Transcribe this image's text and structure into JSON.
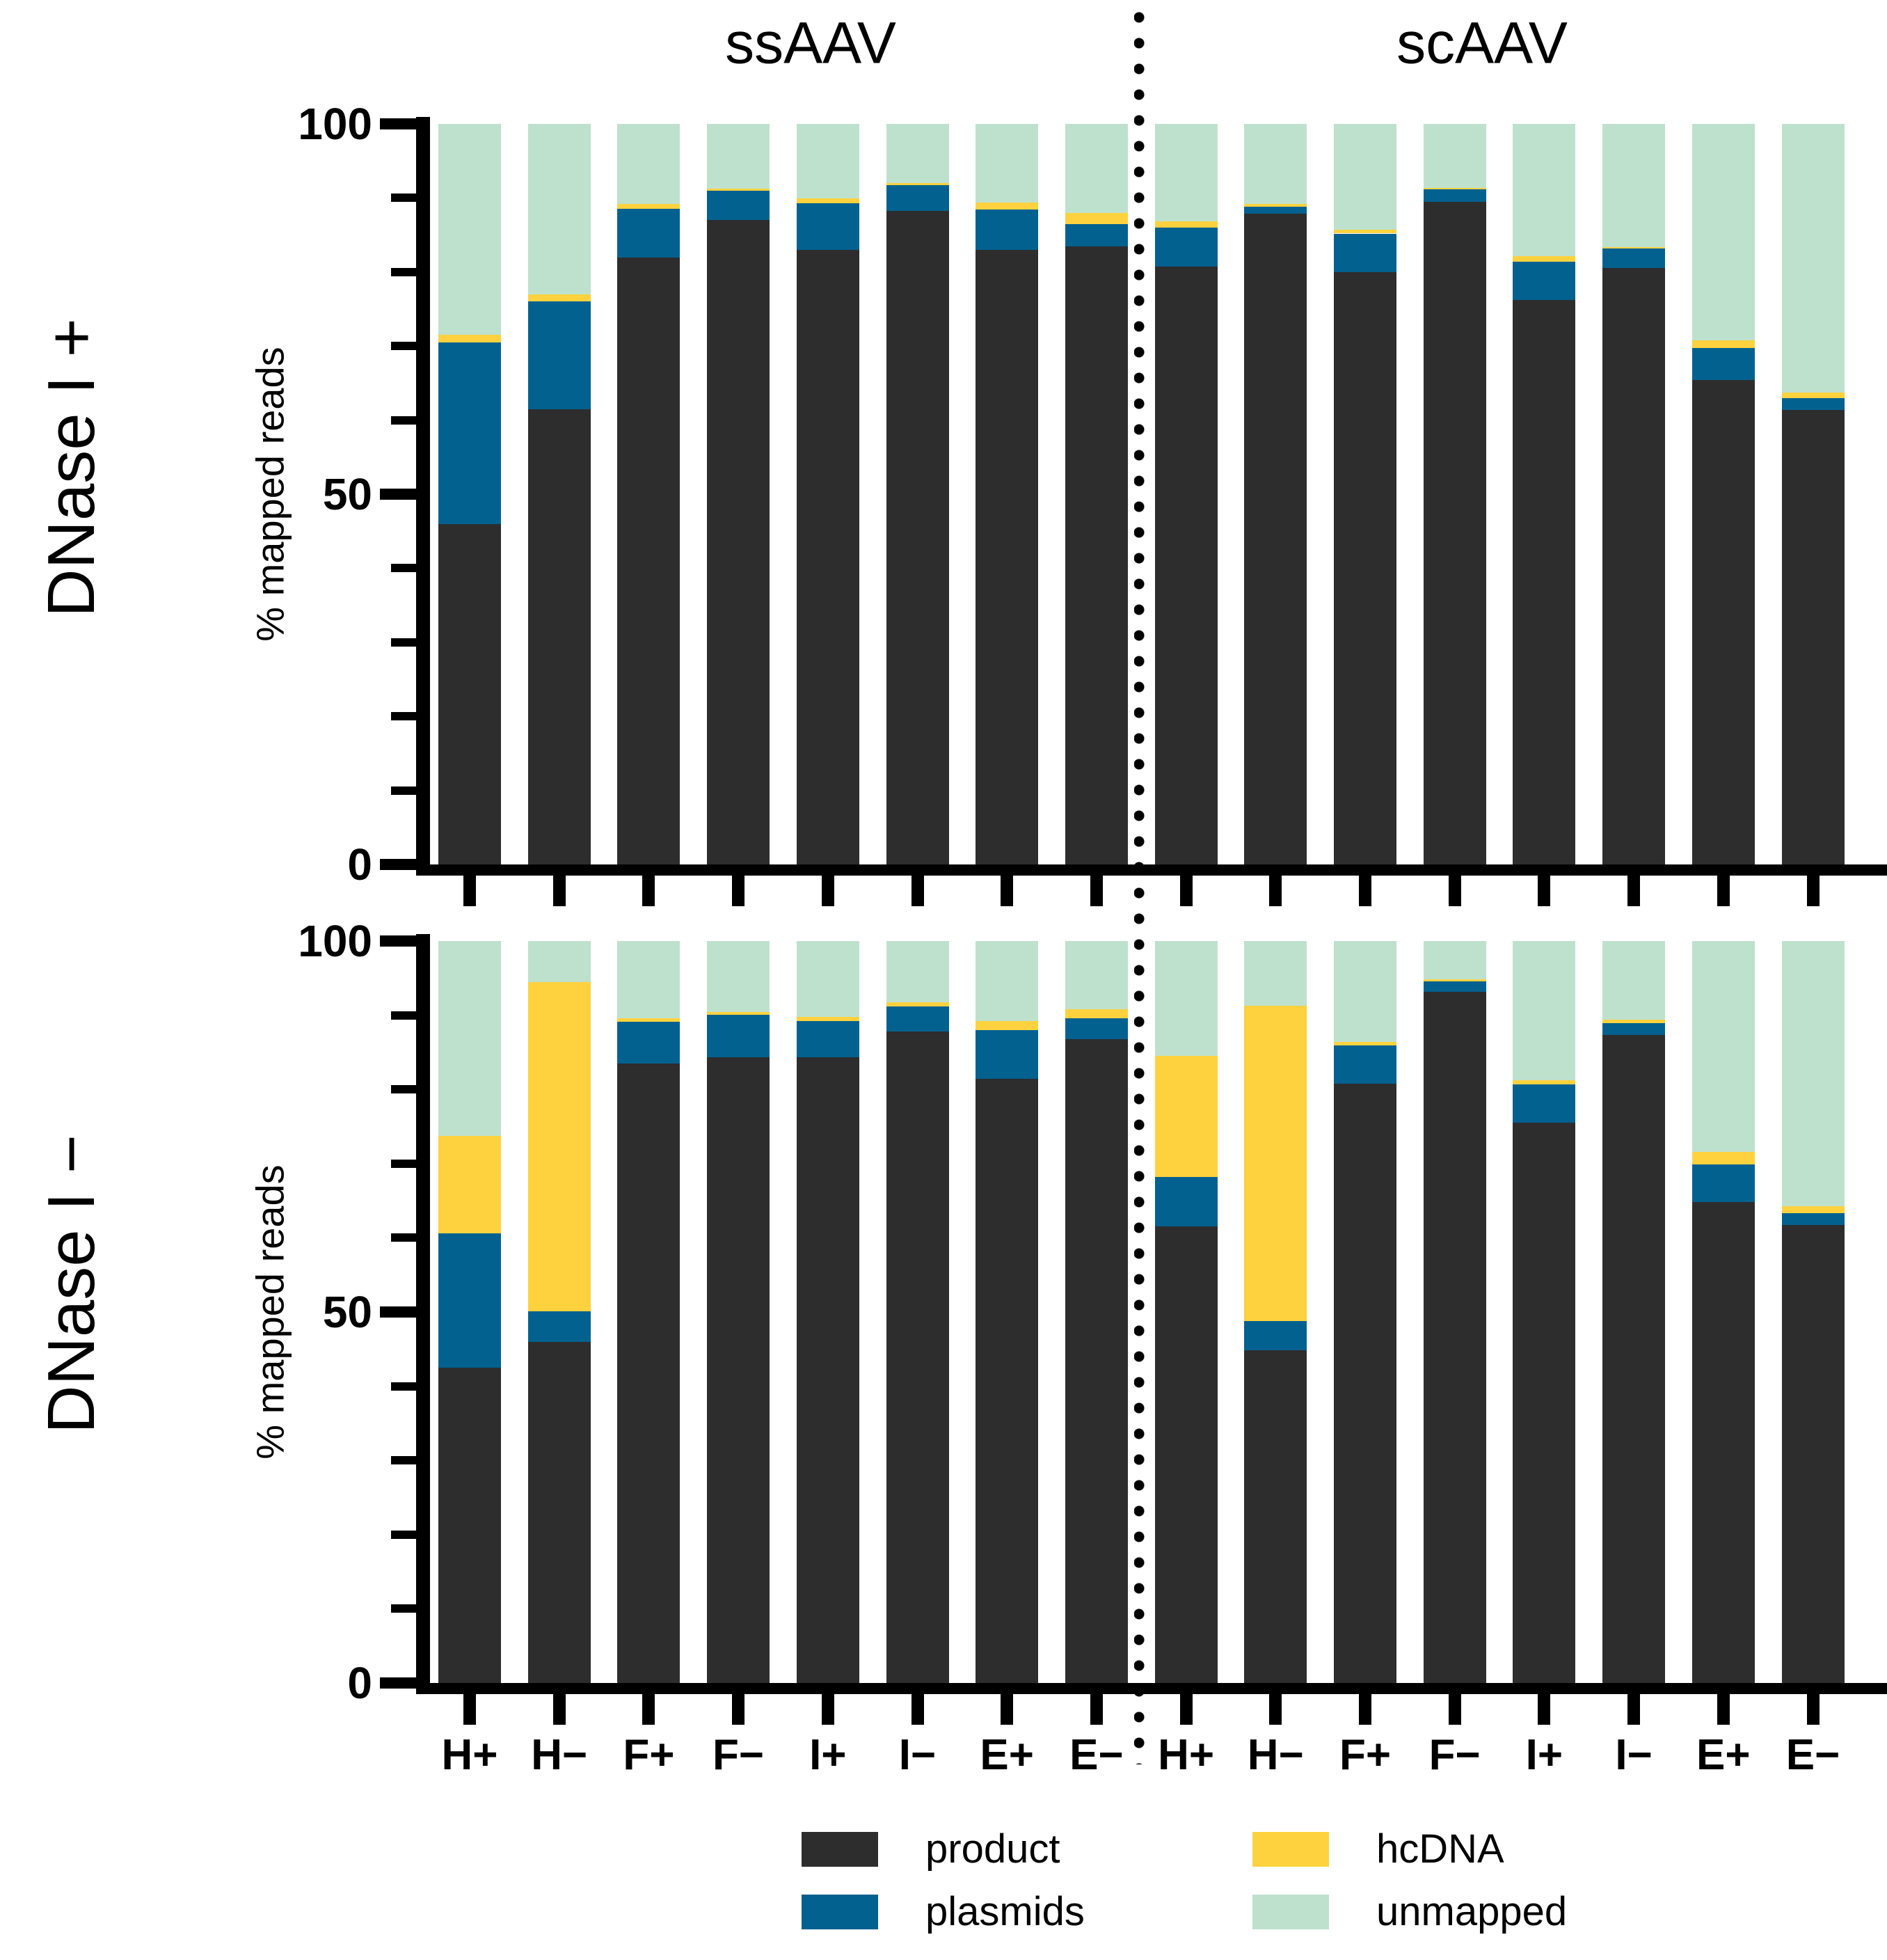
{
  "figure": {
    "group_titles": [
      "ssAAV",
      "scAAV"
    ],
    "colors": {
      "product": "#2d2d2d",
      "plasmids": "#03618f",
      "hcDNA": "#fdd23e",
      "unmapped": "#bee1ce"
    }
  },
  "chart_data": {
    "type": "bar",
    "stacked": true,
    "stack_order": [
      "product",
      "plasmids",
      "hcDNA",
      "unmapped"
    ],
    "groups": [
      "ssAAV",
      "scAAV"
    ],
    "categories": [
      "H+",
      "H−",
      "F+",
      "F−",
      "I+",
      "I−",
      "E+",
      "E−",
      "H+",
      "H−",
      "F+",
      "F−",
      "I+",
      "I−",
      "E+",
      "E−"
    ],
    "ylabel": "% mapped reads",
    "ylim": [
      0,
      100
    ],
    "yticks_major": [
      0,
      50,
      100
    ],
    "ytick_minor_step": 10,
    "legend_position": "bottom",
    "panels": [
      {
        "label": "DNase I +",
        "series": {
          "product": [
            46.0,
            61.5,
            82.0,
            87.0,
            83.0,
            88.3,
            83.0,
            83.5,
            80.7,
            87.9,
            80.0,
            89.5,
            76.2,
            80.5,
            65.4,
            61.4
          ],
          "plasmids": [
            24.5,
            14.5,
            6.5,
            4.0,
            6.3,
            3.4,
            5.4,
            3.0,
            5.3,
            0.9,
            5.2,
            1.7,
            5.2,
            2.7,
            4.3,
            1.6
          ],
          "hcDNA": [
            1.0,
            1.0,
            0.7,
            0.3,
            0.6,
            0.3,
            1.0,
            1.5,
            0.8,
            0.4,
            0.5,
            0.2,
            0.7,
            0.2,
            1.1,
            0.7
          ],
          "unmapped": [
            28.5,
            23.0,
            10.8,
            8.7,
            10.1,
            8.0,
            10.6,
            12.0,
            13.2,
            10.8,
            14.3,
            8.6,
            17.9,
            16.6,
            29.2,
            36.3
          ]
        }
      },
      {
        "label": "DNase I −",
        "series": {
          "product": [
            42.5,
            46.0,
            83.5,
            84.3,
            84.3,
            87.8,
            81.4,
            86.8,
            61.5,
            44.8,
            80.8,
            93.2,
            75.5,
            87.3,
            64.8,
            61.7
          ],
          "plasmids": [
            18.1,
            4.1,
            5.6,
            5.8,
            4.9,
            3.4,
            6.6,
            2.8,
            6.7,
            4.0,
            5.1,
            1.4,
            5.2,
            1.6,
            5.1,
            1.6
          ],
          "hcDNA": [
            13.1,
            44.4,
            0.5,
            0.3,
            0.6,
            0.5,
            1.2,
            1.2,
            16.3,
            42.5,
            0.5,
            0.2,
            0.5,
            0.5,
            1.7,
            1.0
          ],
          "unmapped": [
            26.3,
            5.5,
            10.4,
            9.6,
            10.2,
            8.3,
            10.8,
            9.2,
            15.5,
            8.7,
            13.6,
            5.2,
            18.8,
            10.6,
            28.4,
            35.7
          ]
        }
      }
    ]
  },
  "legend": {
    "items": [
      {
        "label": "product",
        "color": "#2d2d2d"
      },
      {
        "label": "plasmids",
        "color": "#03618f"
      },
      {
        "label": "hcDNA",
        "color": "#fdd23e"
      },
      {
        "label": "unmapped",
        "color": "#bee1ce"
      }
    ]
  }
}
